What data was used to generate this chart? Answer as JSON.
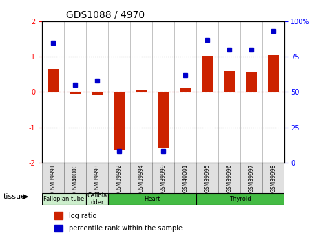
{
  "title": "GDS1088 / 4970",
  "samples": [
    "GSM39991",
    "GSM40000",
    "GSM39993",
    "GSM39992",
    "GSM39994",
    "GSM39999",
    "GSM40001",
    "GSM39995",
    "GSM39996",
    "GSM39997",
    "GSM39998"
  ],
  "log_ratio": [
    0.65,
    -0.05,
    -0.07,
    -1.65,
    0.05,
    -1.6,
    0.1,
    1.02,
    0.6,
    0.55,
    1.05
  ],
  "percentile_rank": [
    85,
    55,
    58,
    8,
    null,
    8,
    62,
    87,
    80,
    80,
    93
  ],
  "tissues": [
    {
      "label": "Fallopian tube",
      "start": 0,
      "end": 2,
      "color": "#ccffcc"
    },
    {
      "label": "Gallbla\ndder",
      "start": 2,
      "end": 3,
      "color": "#ccffcc"
    },
    {
      "label": "Heart",
      "start": 3,
      "end": 7,
      "color": "#66dd66"
    },
    {
      "label": "Thyroid",
      "start": 7,
      "end": 11,
      "color": "#66dd66"
    }
  ],
  "ylim_left": [
    -2,
    2
  ],
  "ylim_right": [
    0,
    100
  ],
  "bar_color": "#cc2200",
  "dot_color": "#0000cc",
  "hline_color": "#cc0000",
  "dotted_color": "#555555",
  "bg_color": "#ffffff"
}
